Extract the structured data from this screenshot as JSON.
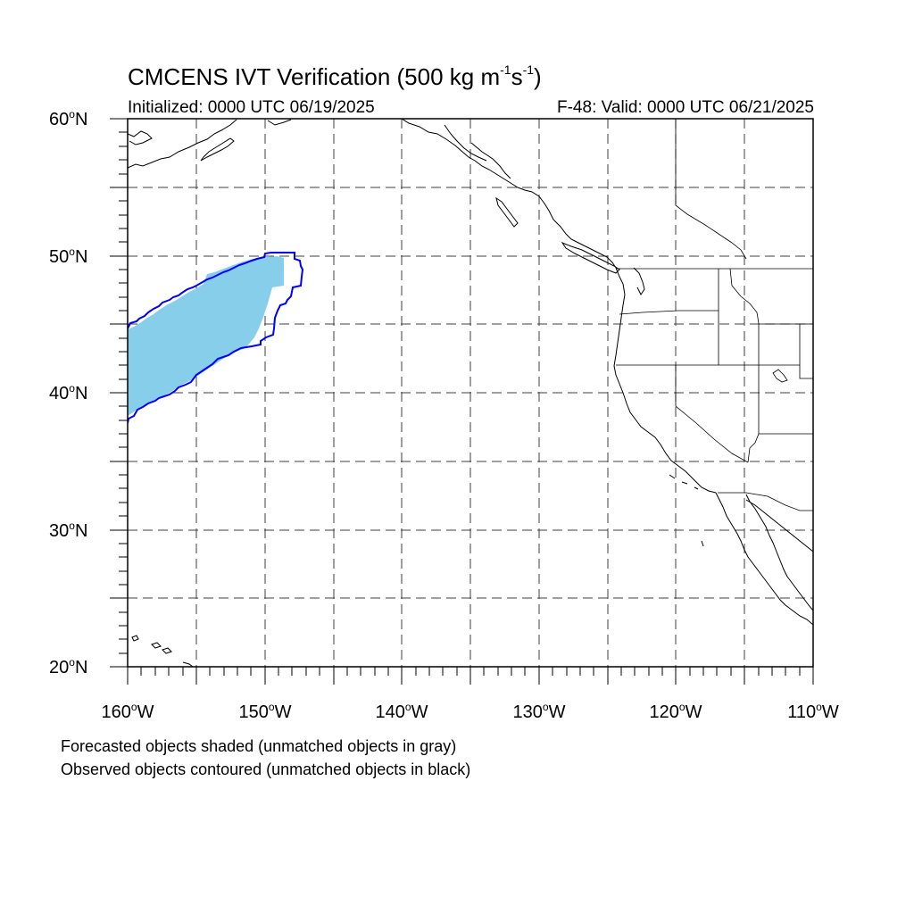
{
  "title": {
    "main_prefix": "CMCENS IVT Verification (500 kg m",
    "exp1": "-1",
    "mid": "s",
    "exp2": "-1",
    "suffix": ")"
  },
  "subtitle_left": "Initialized: 0000 UTC 06/19/2025",
  "subtitle_right": "F-48: Valid: 0000 UTC 06/21/2025",
  "lat_labels": [
    {
      "num": "60",
      "deg": "o",
      "hemi": "N"
    },
    {
      "num": "50",
      "deg": "o",
      "hemi": "N"
    },
    {
      "num": "40",
      "deg": "o",
      "hemi": "N"
    },
    {
      "num": "30",
      "deg": "o",
      "hemi": "N"
    },
    {
      "num": "20",
      "deg": "o",
      "hemi": "N"
    }
  ],
  "lon_labels": [
    {
      "num": "160",
      "deg": "o",
      "hemi": "W"
    },
    {
      "num": "150",
      "deg": "o",
      "hemi": "W"
    },
    {
      "num": "140",
      "deg": "o",
      "hemi": "W"
    },
    {
      "num": "130",
      "deg": "o",
      "hemi": "W"
    },
    {
      "num": "120",
      "deg": "o",
      "hemi": "W"
    },
    {
      "num": "110",
      "deg": "o",
      "hemi": "W"
    }
  ],
  "notes": {
    "forecast": "Forecasted objects shaded (unmatched objects in gray)",
    "observed": "Observed objects contoured (unmatched objects in black)"
  },
  "colors": {
    "forecast_fill": "#87ceeb",
    "observed_contour": "#0000ff",
    "coastline": "#000000",
    "grid": "#000000"
  },
  "map": {
    "projection": "cylindrical equidistant",
    "lon_range": [
      -160,
      -110
    ],
    "lat_range": [
      20,
      60
    ],
    "grid": "dashed every 5 degrees"
  }
}
